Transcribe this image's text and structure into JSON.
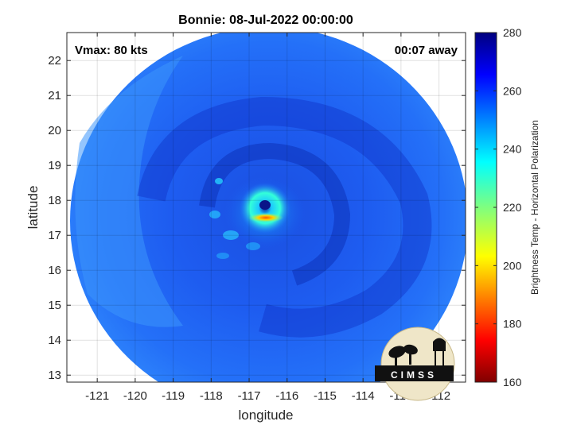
{
  "chart_data": {
    "type": "heatmap",
    "title": "Bonnie: 08-Jul-2022 00:00:00",
    "xlabel": "longitude",
    "ylabel": "latitude",
    "xlim": [
      -121.8,
      -111.3
    ],
    "ylim": [
      12.8,
      22.8
    ],
    "xticks": [
      -121,
      -120,
      -119,
      -118,
      -117,
      -116,
      -115,
      -114,
      -113,
      -112
    ],
    "yticks": [
      13,
      14,
      15,
      16,
      17,
      18,
      19,
      20,
      21,
      22
    ],
    "grid": true,
    "annotations": {
      "vmax": "Vmax: 80 kts",
      "time_away": "00:07 away"
    },
    "colorbar": {
      "label": "Brightness Temp - Horizontal Polarization",
      "min": 160,
      "max": 280,
      "ticks": [
        160,
        180,
        200,
        220,
        240,
        260,
        280
      ],
      "colormap": "jet"
    },
    "storm_center": {
      "lon": -116.4,
      "lat": 17.85
    },
    "swath_center": {
      "lon": -116.5,
      "lat": 17.8
    },
    "logo_text": "CIMSS"
  }
}
